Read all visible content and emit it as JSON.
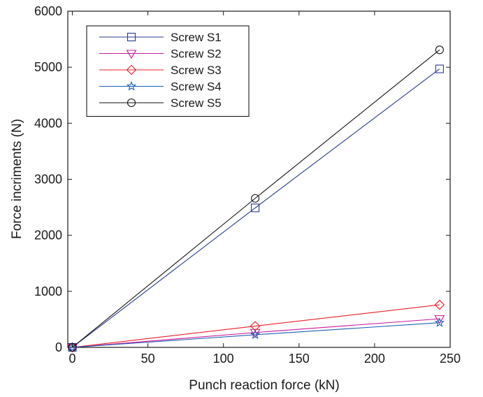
{
  "chart_data": {
    "type": "line",
    "title": "",
    "xlabel": "Punch reaction force (kN)",
    "ylabel": "Force incriments (N)",
    "xlim": [
      -3,
      250
    ],
    "ylim": [
      0,
      6000
    ],
    "xticks": [
      0,
      50,
      100,
      150,
      200,
      250
    ],
    "yticks": [
      0,
      1000,
      2000,
      3000,
      4000,
      5000,
      6000
    ],
    "xtick_labels": [
      "0",
      "50",
      "100",
      "150",
      "200",
      "250"
    ],
    "ytick_labels": [
      "0",
      "1000",
      "2000",
      "3000",
      "4000",
      "5000",
      "6000"
    ],
    "grid": false,
    "legend_position": "top-left",
    "series": [
      {
        "name": "Screw S1",
        "marker": "square",
        "color": "#2b3a8f",
        "x": [
          0,
          121,
          243
        ],
        "y": [
          0,
          2490,
          4970
        ]
      },
      {
        "name": "Screw S2",
        "marker": "triangle-down",
        "color": "#c8189a",
        "x": [
          0,
          121,
          243
        ],
        "y": [
          0,
          265,
          510
        ]
      },
      {
        "name": "Screw S3",
        "marker": "diamond",
        "color": "#e8202a",
        "x": [
          0,
          121,
          243
        ],
        "y": [
          0,
          380,
          760
        ]
      },
      {
        "name": "Screw S4",
        "marker": "star",
        "color": "#1f5fb5",
        "x": [
          0,
          121,
          243
        ],
        "y": [
          0,
          225,
          440
        ]
      },
      {
        "name": "Screw S5",
        "marker": "circle",
        "color": "#111111",
        "x": [
          0,
          121,
          243
        ],
        "y": [
          0,
          2660,
          5310
        ]
      }
    ]
  }
}
